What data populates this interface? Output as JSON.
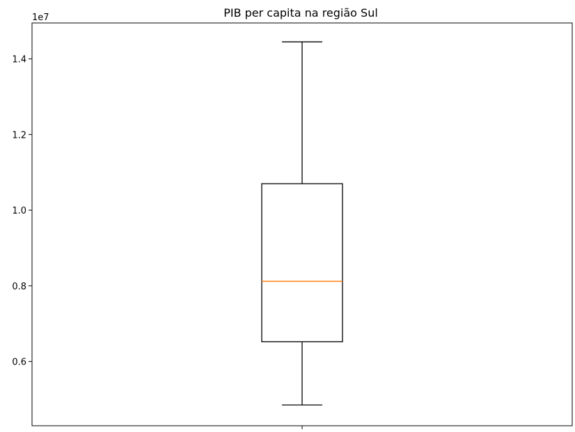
{
  "chart_data": {
    "type": "boxplot",
    "title": "PIB per capita na região Sul",
    "xlabel": "",
    "ylabel": "",
    "y_offset_label": "1e7",
    "ylim": [
      0.43,
      1.495
    ],
    "yticks": [
      0.6,
      0.8,
      1.0,
      1.2,
      1.4
    ],
    "ytick_labels": [
      "0.6",
      "0.8",
      "1.0",
      "1.2",
      "1.4"
    ],
    "box": {
      "whisker_low": 0.485,
      "q1": 0.652,
      "median": 0.812,
      "q3": 1.07,
      "whisker_high": 1.445
    },
    "grid": false,
    "colors": {
      "box": "#000000",
      "median": "#ff7f0e"
    }
  }
}
